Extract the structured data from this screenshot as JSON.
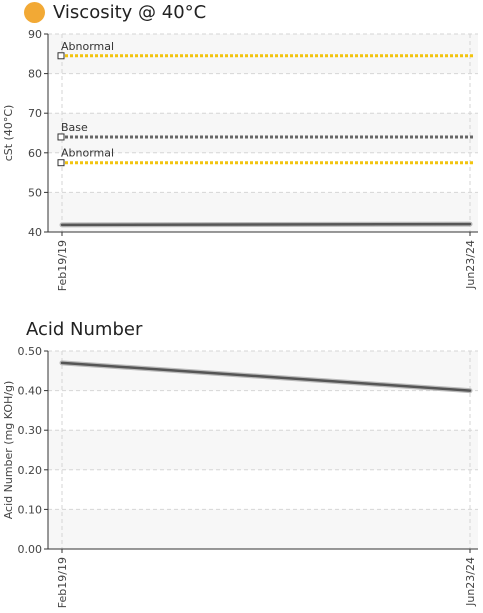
{
  "chart_data": [
    {
      "type": "line",
      "title": "Viscosity @ 40°C",
      "title_marker_color": "#F2A935",
      "ylabel": "cSt (40°C)",
      "ylim": [
        40,
        90
      ],
      "yticks": [
        "40",
        "50",
        "60",
        "70",
        "80",
        "90"
      ],
      "x": [
        "Feb19/19",
        "Jun23/24"
      ],
      "series": [
        {
          "values": [
            41.8,
            42.0
          ],
          "color": "#555555"
        }
      ],
      "reference_lines": [
        {
          "label": "Abnormal",
          "value": 84.5,
          "color": "#F2C40F"
        },
        {
          "label": "Base",
          "value": 64.0,
          "color": "#666666"
        },
        {
          "label": "Abnormal",
          "value": 57.5,
          "color": "#F2C40F"
        }
      ],
      "grid": true
    },
    {
      "type": "line",
      "title": "Acid Number",
      "ylabel": "Acid Number (mg KOH/g)",
      "ylim": [
        0,
        0.5
      ],
      "yticks": [
        "0.00",
        "0.10",
        "0.20",
        "0.30",
        "0.40",
        "0.50"
      ],
      "x": [
        "Feb19/19",
        "Jun23/24"
      ],
      "series": [
        {
          "values": [
            0.47,
            0.4
          ],
          "color": "#555555"
        }
      ],
      "grid": true
    }
  ]
}
